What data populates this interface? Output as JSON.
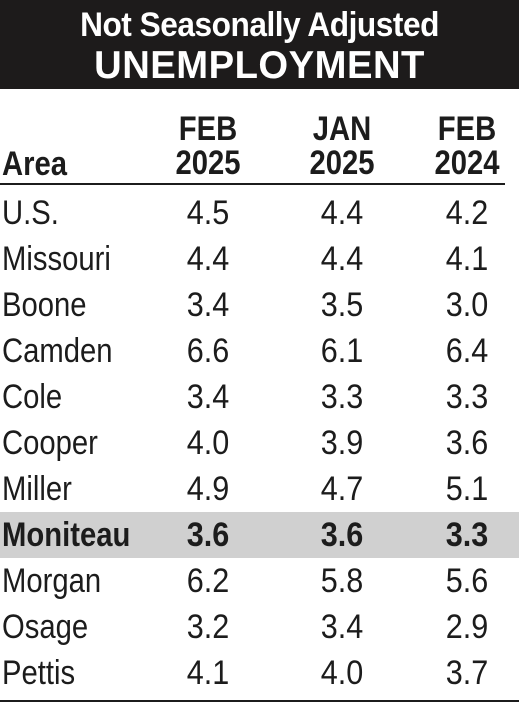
{
  "header": {
    "line1": "Not Seasonally Adjusted",
    "line2": "UNEMPLOYMENT"
  },
  "table": {
    "columns": [
      {
        "key": "area",
        "label": "Area"
      },
      {
        "key": "feb2025",
        "month": "FEB",
        "year": "2025"
      },
      {
        "key": "jan2025",
        "month": "JAN",
        "year": "2025"
      },
      {
        "key": "feb2024",
        "month": "FEB",
        "year": "2024"
      }
    ],
    "rows": [
      {
        "area": "U.S.",
        "feb2025": "4.5",
        "jan2025": "4.4",
        "feb2024": "4.2",
        "highlight": false
      },
      {
        "area": "Missouri",
        "feb2025": "4.4",
        "jan2025": "4.4",
        "feb2024": "4.1",
        "highlight": false
      },
      {
        "area": "Boone",
        "feb2025": "3.4",
        "jan2025": "3.5",
        "feb2024": "3.0",
        "highlight": false
      },
      {
        "area": "Camden",
        "feb2025": "6.6",
        "jan2025": "6.1",
        "feb2024": "6.4",
        "highlight": false
      },
      {
        "area": "Cole",
        "feb2025": "3.4",
        "jan2025": "3.3",
        "feb2024": "3.3",
        "highlight": false
      },
      {
        "area": "Cooper",
        "feb2025": "4.0",
        "jan2025": "3.9",
        "feb2024": "3.6",
        "highlight": false
      },
      {
        "area": "Miller",
        "feb2025": "4.9",
        "jan2025": "4.7",
        "feb2024": "5.1",
        "highlight": false
      },
      {
        "area": "Moniteau",
        "feb2025": "3.6",
        "jan2025": "3.6",
        "feb2024": "3.3",
        "highlight": true
      },
      {
        "area": "Morgan",
        "feb2025": "6.2",
        "jan2025": "5.8",
        "feb2024": "5.6",
        "highlight": false
      },
      {
        "area": "Osage",
        "feb2025": "3.2",
        "jan2025": "3.4",
        "feb2024": "2.9",
        "highlight": false
      },
      {
        "area": "Pettis",
        "feb2025": "4.1",
        "jan2025": "4.0",
        "feb2024": "3.7",
        "highlight": false
      }
    ]
  },
  "colors": {
    "header_bg": "#1d1b1b",
    "header_text": "#ffffff",
    "highlight_bg": "#d0d0d0",
    "text": "#1c1c1c"
  }
}
